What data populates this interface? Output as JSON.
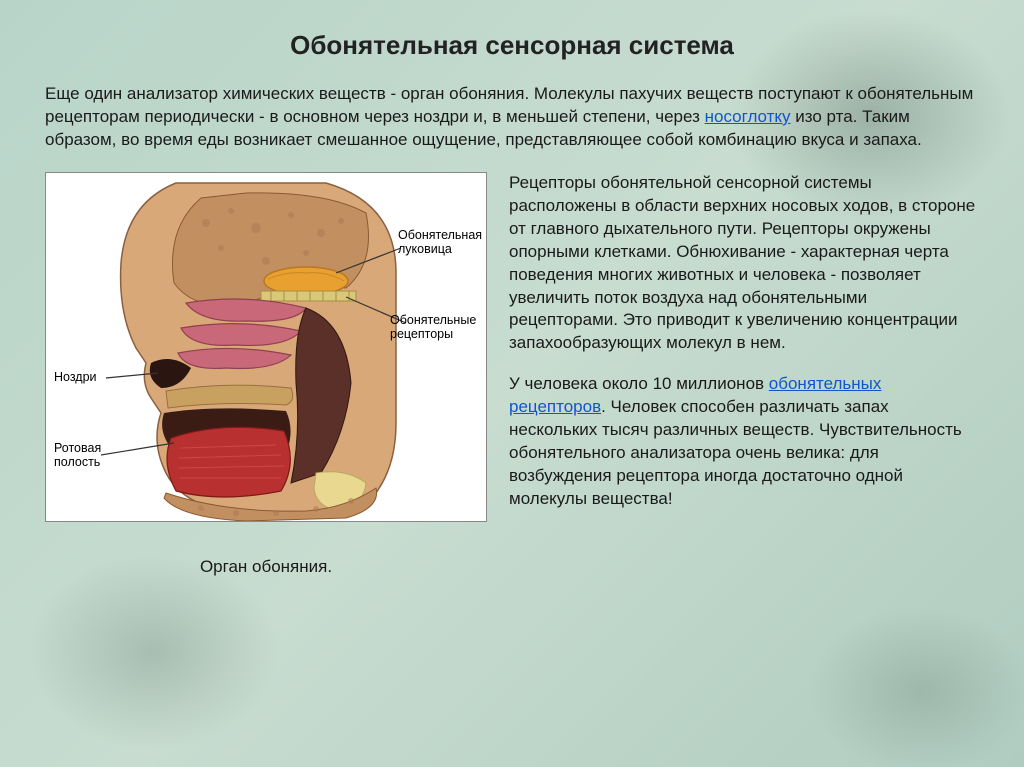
{
  "title": "Обонятельная сенсорная система",
  "intro": {
    "pre": "Еще один анализатор химических веществ - орган обоняния. Молекулы пахучих веществ поступают к обонятельным рецепторам периодически - в основном через ноздри и, в меньшей степени, через ",
    "link": "носоглотку",
    "post": " изо рта. Таким образом, во время еды возникает смешанное ощущение, представляющее собой комбинацию вкуса и запаха."
  },
  "diagram": {
    "caption": "Орган обоняния.",
    "labels": {
      "bulb": "Обонятельная\nлуковица",
      "receptors": "Обонятельные\nрецепторы",
      "nostrils": "Ноздри",
      "oral": "Ротовая\nполость"
    },
    "colors": {
      "skin": "#d9a878",
      "bone": "#c29060",
      "mucosa": "#c86878",
      "muscle": "#b83030",
      "cavity": "#402018",
      "bulb": "#e8a030",
      "cartilage": "#e8d890",
      "line": "#333333"
    }
  },
  "para1": "Рецепторы обонятельной сенсорной системы расположены в области верхних носовых ходов, в стороне от главного дыхательного пути. Рецепторы окружены опорными клетками. Обнюхивание - характерная черта поведения многих животных и человека - позволяет увеличить поток воздуха над обонятельными рецепторами. Это приводит к увеличению концентрации запахообразующих молекул в нем.",
  "para2": {
    "pre": "У человека около 10 миллионов ",
    "link": "обонятельных рецепторов",
    "post": ". Человек способен различать запах нескольких тысяч различных веществ. Чувствительность обонятельного анализатора очень велика: для возбуждения рецептора иногда достаточно одной молекулы вещества!"
  },
  "style": {
    "title_fontsize": 26,
    "body_fontsize": 17,
    "label_fontsize": 12.5,
    "link_color": "#1155cc",
    "text_color": "#1a1a1a",
    "bg_gradient": [
      "#b8d4c8",
      "#c8dcd0",
      "#b0ccc0"
    ]
  }
}
